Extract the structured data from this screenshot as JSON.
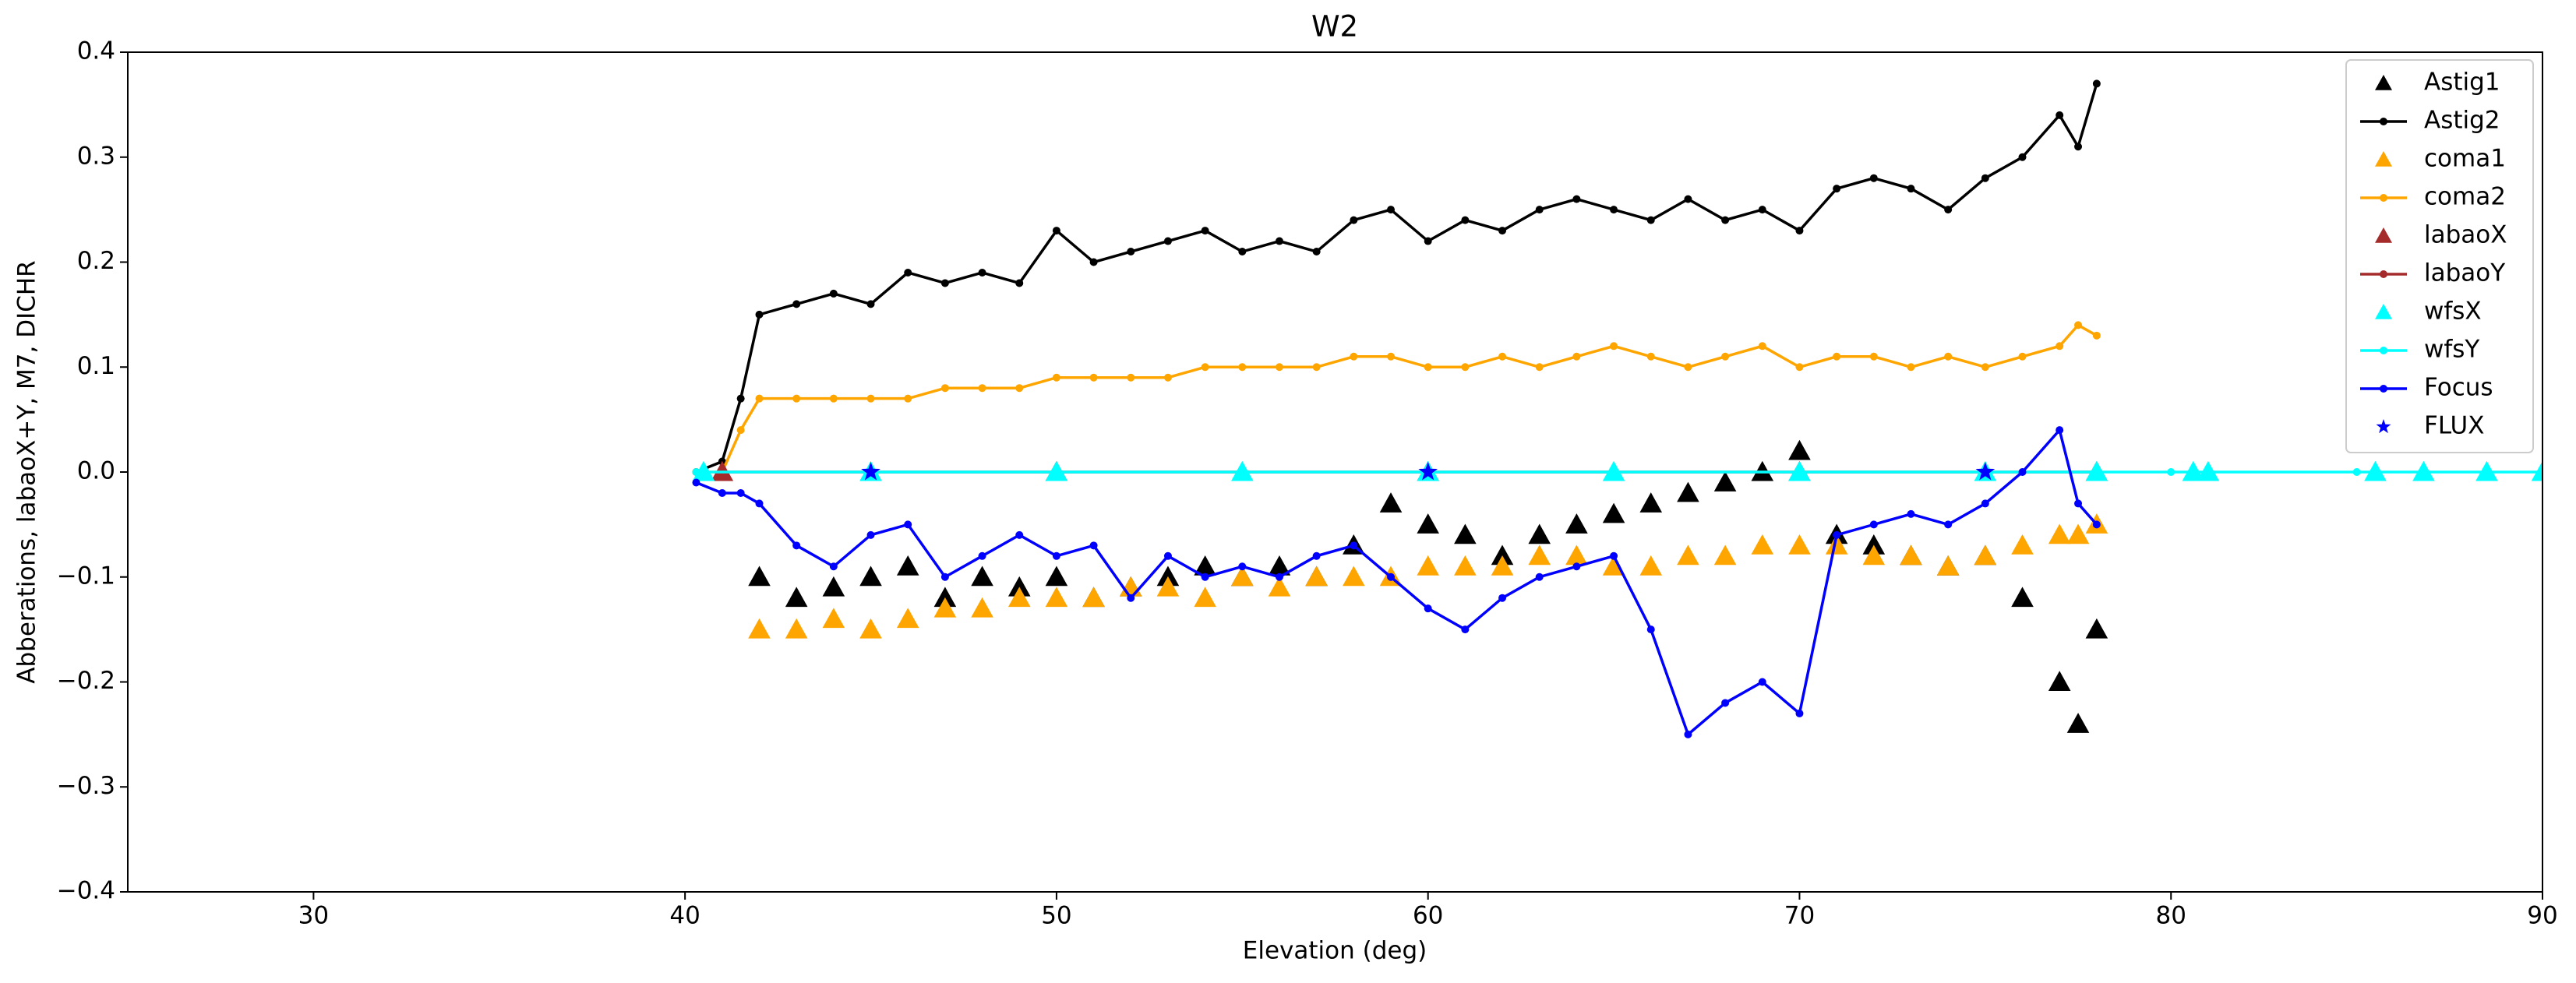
{
  "chart_data": {
    "type": "line",
    "title": "W2",
    "x_label": "Elevation (deg)",
    "y_label": "Abberations, labaoX+Y, M7, DICHR",
    "xlim": [
      25,
      90
    ],
    "xticks": [
      30,
      40,
      50,
      60,
      70,
      80,
      90
    ],
    "ylim": [
      -0.4,
      0.4
    ],
    "yticks": [
      {
        "value": -0.4,
        "label": "−0.4"
      },
      {
        "value": -0.3,
        "label": "−0.3"
      },
      {
        "value": -0.2,
        "label": "−0.2"
      },
      {
        "value": -0.1,
        "label": "−0.1"
      },
      {
        "value": 0,
        "label": "0.0"
      },
      0.1,
      0.2,
      0.3,
      0.4
    ],
    "legend": "upper right",
    "series": [
      {
        "name": "Astig1",
        "color": "#000000",
        "marker": "triangle",
        "line": false,
        "x": [
          42,
          43,
          44,
          45,
          46,
          47,
          48,
          49,
          50,
          51,
          52,
          53,
          54,
          55,
          56,
          57,
          58,
          59,
          60,
          61,
          62,
          63,
          64,
          65,
          66,
          67,
          68,
          69,
          70,
          71,
          72,
          73,
          74,
          75,
          76,
          77,
          77.5,
          78
        ],
        "values": [
          -0.1,
          -0.12,
          -0.11,
          -0.1,
          -0.09,
          -0.12,
          -0.1,
          -0.11,
          -0.1,
          -0.12,
          -0.11,
          -0.1,
          -0.09,
          -0.1,
          -0.09,
          -0.1,
          -0.07,
          -0.03,
          -0.05,
          -0.06,
          -0.08,
          -0.06,
          -0.05,
          -0.04,
          -0.03,
          -0.02,
          -0.01,
          0.0,
          0.02,
          -0.06,
          -0.07,
          -0.08,
          -0.09,
          -0.08,
          -0.12,
          -0.2,
          -0.24,
          -0.15
        ]
      },
      {
        "name": "Astig2",
        "color": "#000000",
        "marker": "dot",
        "line": true,
        "x": [
          40.3,
          41,
          41.5,
          42,
          43,
          44,
          45,
          46,
          47,
          48,
          49,
          50,
          51,
          52,
          53,
          54,
          55,
          56,
          57,
          58,
          59,
          60,
          61,
          62,
          63,
          64,
          65,
          66,
          67,
          68,
          69,
          70,
          71,
          72,
          73,
          74,
          75,
          76,
          77,
          77.5,
          78
        ],
        "values": [
          0,
          0.01,
          0.07,
          0.15,
          0.16,
          0.17,
          0.16,
          0.19,
          0.18,
          0.19,
          0.18,
          0.23,
          0.2,
          0.21,
          0.22,
          0.23,
          0.21,
          0.22,
          0.21,
          0.24,
          0.25,
          0.22,
          0.24,
          0.23,
          0.25,
          0.26,
          0.25,
          0.24,
          0.26,
          0.24,
          0.25,
          0.23,
          0.27,
          0.28,
          0.27,
          0.25,
          0.28,
          0.3,
          0.34,
          0.31,
          0.37
        ]
      },
      {
        "name": "coma1",
        "color": "#ffa500",
        "marker": "triangle",
        "line": false,
        "x": [
          42,
          43,
          44,
          45,
          46,
          47,
          48,
          49,
          50,
          51,
          52,
          53,
          54,
          55,
          56,
          57,
          58,
          59,
          60,
          61,
          62,
          63,
          64,
          65,
          66,
          67,
          68,
          69,
          70,
          71,
          72,
          73,
          74,
          75,
          76,
          77,
          77.5,
          78
        ],
        "values": [
          -0.15,
          -0.15,
          -0.14,
          -0.15,
          -0.14,
          -0.13,
          -0.13,
          -0.12,
          -0.12,
          -0.12,
          -0.11,
          -0.11,
          -0.12,
          -0.1,
          -0.11,
          -0.1,
          -0.1,
          -0.1,
          -0.09,
          -0.09,
          -0.09,
          -0.08,
          -0.08,
          -0.09,
          -0.09,
          -0.08,
          -0.08,
          -0.07,
          -0.07,
          -0.07,
          -0.08,
          -0.08,
          -0.09,
          -0.08,
          -0.07,
          -0.06,
          -0.06,
          -0.05
        ]
      },
      {
        "name": "coma2",
        "color": "#ffa500",
        "marker": "dot",
        "line": true,
        "x": [
          40.3,
          41,
          41.5,
          42,
          43,
          44,
          45,
          46,
          47,
          48,
          49,
          50,
          51,
          52,
          53,
          54,
          55,
          56,
          57,
          58,
          59,
          60,
          61,
          62,
          63,
          64,
          65,
          66,
          67,
          68,
          69,
          70,
          71,
          72,
          73,
          74,
          75,
          76,
          77,
          77.5,
          78
        ],
        "values": [
          0,
          0,
          0.04,
          0.07,
          0.07,
          0.07,
          0.07,
          0.07,
          0.08,
          0.08,
          0.08,
          0.09,
          0.09,
          0.09,
          0.09,
          0.1,
          0.1,
          0.1,
          0.1,
          0.11,
          0.11,
          0.1,
          0.1,
          0.11,
          0.1,
          0.11,
          0.12,
          0.11,
          0.1,
          0.11,
          0.12,
          0.1,
          0.11,
          0.11,
          0.1,
          0.11,
          0.1,
          0.11,
          0.12,
          0.14,
          0.13
        ]
      },
      {
        "name": "labaoX",
        "color": "#a52a2a",
        "marker": "triangle",
        "line": false,
        "x": [
          41,
          50,
          60,
          70,
          78
        ],
        "values": [
          0,
          0,
          0,
          0,
          0
        ]
      },
      {
        "name": "labaoY",
        "color": "#a52a2a",
        "marker": "dot",
        "line": true,
        "x": [
          41,
          50,
          60,
          70,
          78
        ],
        "values": [
          0,
          0,
          0,
          0,
          0
        ]
      },
      {
        "name": "wfsX",
        "color": "#00ffff",
        "marker": "triangle",
        "line": false,
        "x": [
          40.5,
          45,
          50,
          55,
          60,
          65,
          70,
          75,
          78,
          80.6,
          81,
          85.5,
          86.8,
          88.5,
          90
        ],
        "values": [
          0,
          0,
          0,
          0,
          0,
          0,
          0,
          0,
          0,
          0,
          0,
          0,
          0,
          0,
          0
        ]
      },
      {
        "name": "wfsY",
        "color": "#00ffff",
        "marker": "dot",
        "line": true,
        "x": [
          40.3,
          50,
          60,
          70,
          78,
          80,
          85,
          90
        ],
        "values": [
          0,
          0,
          0,
          0,
          0,
          0,
          0,
          0
        ]
      },
      {
        "name": "Focus",
        "color": "#0000ff",
        "marker": "dot",
        "line": true,
        "x": [
          40.3,
          41,
          41.5,
          42,
          43,
          44,
          45,
          46,
          47,
          48,
          49,
          50,
          51,
          52,
          53,
          54,
          55,
          56,
          57,
          58,
          59,
          60,
          61,
          62,
          63,
          64,
          65,
          66,
          67,
          68,
          69,
          70,
          71,
          72,
          73,
          74,
          75,
          76,
          77,
          77.5,
          78
        ],
        "values": [
          -0.01,
          -0.02,
          -0.02,
          -0.03,
          -0.07,
          -0.09,
          -0.06,
          -0.05,
          -0.1,
          -0.08,
          -0.06,
          -0.08,
          -0.07,
          -0.12,
          -0.08,
          -0.1,
          -0.09,
          -0.1,
          -0.08,
          -0.07,
          -0.1,
          -0.13,
          -0.15,
          -0.12,
          -0.1,
          -0.09,
          -0.08,
          -0.15,
          -0.25,
          -0.22,
          -0.2,
          -0.23,
          -0.06,
          -0.05,
          -0.04,
          -0.05,
          -0.03,
          0,
          0.04,
          -0.03,
          -0.05
        ]
      },
      {
        "name": "FLUX",
        "color": "#0000ff",
        "marker": "star",
        "line": false,
        "x": [
          45,
          60,
          75
        ],
        "values": [
          0,
          0,
          0
        ]
      }
    ]
  }
}
